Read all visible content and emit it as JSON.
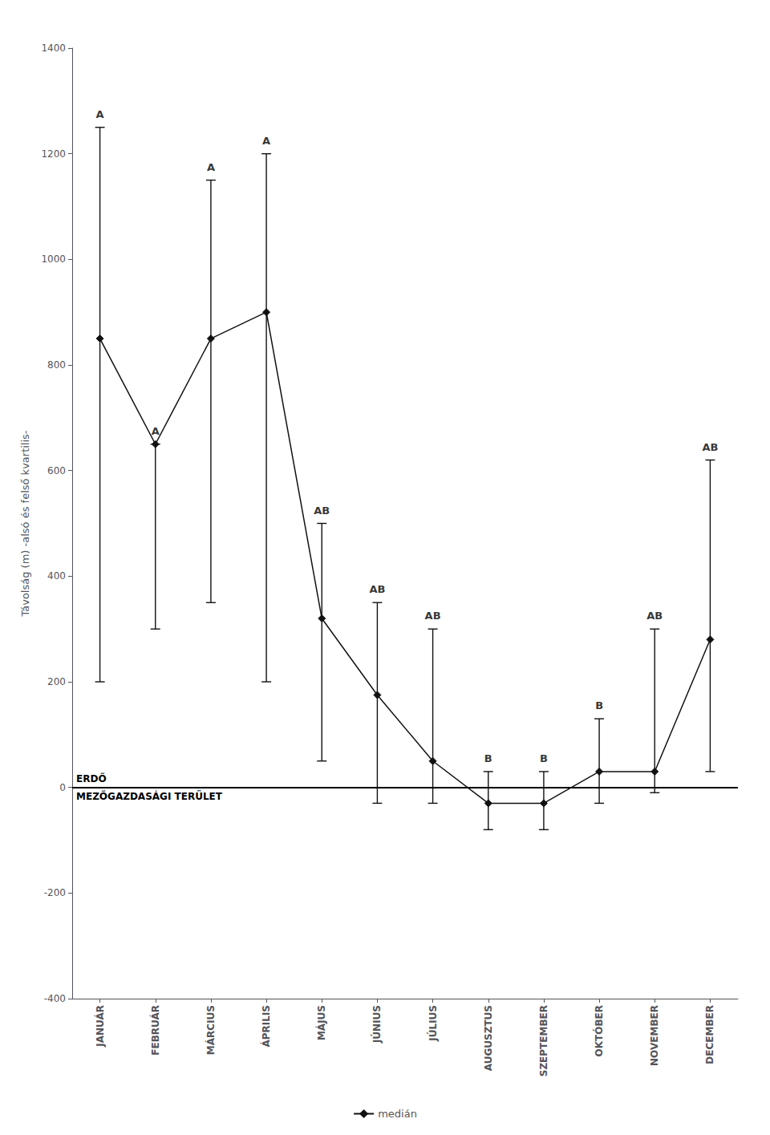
{
  "chart_data": {
    "type": "line",
    "categories": [
      "JANUÁR",
      "FEBRUÁR",
      "MÁRCIUS",
      "ÁPRILIS",
      "MÁJUS",
      "JÚNIUS",
      "JÚLIUS",
      "AUGUSZTUS",
      "SZEPTEMBER",
      "OKTÓBER",
      "NOVEMBER",
      "DECEMBER"
    ],
    "series": [
      {
        "name": "medián",
        "color": "#111111",
        "marker": "diamond",
        "values": [
          850,
          650,
          850,
          900,
          320,
          175,
          50,
          -30,
          -30,
          30,
          30,
          280
        ],
        "lower": [
          200,
          300,
          350,
          200,
          50,
          -30,
          -30,
          -80,
          -80,
          -30,
          -10,
          30
        ],
        "upper": [
          1250,
          650,
          1150,
          1200,
          500,
          350,
          300,
          30,
          30,
          130,
          300,
          620
        ],
        "group_labels": [
          "A",
          "A",
          "A",
          "A",
          "AB",
          "AB",
          "AB",
          "B",
          "B",
          "B",
          "AB",
          "AB"
        ]
      }
    ],
    "ylabel": "Távolság (m) -alsó és felső kvartilis-",
    "annotations": [
      "ERDŐ",
      "MEZŐGAZDASÁGI TERÜLET"
    ],
    "reference_line": 0,
    "ylim": [
      -400,
      1400
    ],
    "yticks": [
      -400,
      -200,
      0,
      200,
      400,
      600,
      800,
      1000,
      1200,
      1400
    ],
    "grid": false,
    "legend": "bottom"
  }
}
